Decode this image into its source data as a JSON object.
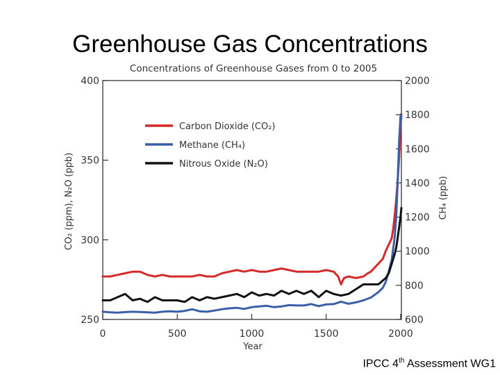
{
  "slide": {
    "title": "Greenhouse Gas Concentrations",
    "credit_pre": "IPCC 4",
    "credit_sup": "th",
    "credit_post": " Assessment WG1"
  },
  "chart_data": {
    "type": "line",
    "title": "Concentrations of Greenhouse Gases from 0 to 2005",
    "xlabel": "Year",
    "ylabel_left": "CO₂ (ppm), N₂O (ppb)",
    "ylabel_right": "CH₄ (ppb)",
    "xlim": [
      0,
      2005
    ],
    "ylim_left": [
      250,
      400
    ],
    "ylim_right": [
      600,
      2000
    ],
    "x_ticks": [
      0,
      500,
      1000,
      1500,
      2000
    ],
    "y_ticks_left": [
      250,
      300,
      350,
      400
    ],
    "y_ticks_right": [
      600,
      800,
      1000,
      1200,
      1400,
      1600,
      1800,
      2000
    ],
    "grid": false,
    "legend_position": "upper-left",
    "series": [
      {
        "name": "Carbon Dioxide (CO₂)",
        "axis": "left",
        "color": "#d42a2a",
        "x": [
          0,
          50,
          100,
          150,
          200,
          250,
          300,
          350,
          400,
          450,
          500,
          550,
          600,
          650,
          700,
          750,
          800,
          850,
          900,
          950,
          1000,
          1050,
          1100,
          1150,
          1200,
          1250,
          1300,
          1350,
          1400,
          1450,
          1500,
          1550,
          1580,
          1600,
          1620,
          1650,
          1700,
          1750,
          1780,
          1800,
          1820,
          1850,
          1880,
          1900,
          1920,
          1940,
          1950,
          1960,
          1970,
          1980,
          1990,
          2000,
          2005
        ],
        "y": [
          277,
          277,
          278,
          279,
          280,
          280,
          278,
          277,
          278,
          277,
          277,
          277,
          277,
          278,
          277,
          277,
          279,
          280,
          281,
          280,
          281,
          280,
          280,
          281,
          282,
          281,
          280,
          280,
          280,
          280,
          281,
          280,
          277,
          272,
          276,
          277,
          276,
          277,
          279,
          280,
          282,
          285,
          288,
          293,
          297,
          301,
          307,
          315,
          325,
          337,
          352,
          372,
          379
        ]
      },
      {
        "name": "Methane (CH₄)",
        "axis": "right",
        "color": "#3b5ea8",
        "x": [
          0,
          50,
          100,
          150,
          200,
          250,
          300,
          350,
          400,
          450,
          500,
          550,
          600,
          650,
          700,
          750,
          800,
          850,
          900,
          950,
          1000,
          1050,
          1100,
          1150,
          1200,
          1250,
          1300,
          1350,
          1400,
          1450,
          1500,
          1550,
          1600,
          1650,
          1700,
          1750,
          1800,
          1850,
          1880,
          1900,
          1920,
          1940,
          1960,
          1970,
          1980,
          1990,
          2000,
          2005
        ],
        "y": [
          645,
          642,
          640,
          643,
          645,
          644,
          642,
          640,
          645,
          648,
          645,
          650,
          660,
          648,
          645,
          652,
          660,
          665,
          668,
          662,
          672,
          676,
          680,
          672,
          676,
          684,
          682,
          682,
          690,
          678,
          688,
          690,
          704,
          692,
          700,
          712,
          728,
          760,
          785,
          820,
          880,
          950,
          1080,
          1200,
          1400,
          1650,
          1800,
          1780
        ]
      },
      {
        "name": "Nitrous Oxide (N₂O)",
        "axis": "left",
        "color": "#111111",
        "x": [
          0,
          50,
          100,
          150,
          200,
          250,
          300,
          350,
          400,
          450,
          500,
          550,
          600,
          650,
          700,
          750,
          800,
          850,
          900,
          950,
          1000,
          1050,
          1100,
          1150,
          1200,
          1250,
          1300,
          1350,
          1400,
          1450,
          1500,
          1550,
          1600,
          1650,
          1700,
          1750,
          1800,
          1850,
          1900,
          1920,
          1940,
          1960,
          1970,
          1980,
          1990,
          2000,
          2005
        ],
        "y": [
          262,
          262,
          264,
          266,
          262,
          263,
          261,
          264,
          262,
          262,
          262,
          261,
          264,
          262,
          264,
          263,
          264,
          265,
          266,
          264,
          267,
          265,
          266,
          265,
          268,
          266,
          268,
          266,
          268,
          264,
          268,
          266,
          265,
          266,
          269,
          272,
          272,
          272,
          276,
          279,
          285,
          291,
          295,
          301,
          308,
          315,
          320
        ]
      }
    ]
  }
}
